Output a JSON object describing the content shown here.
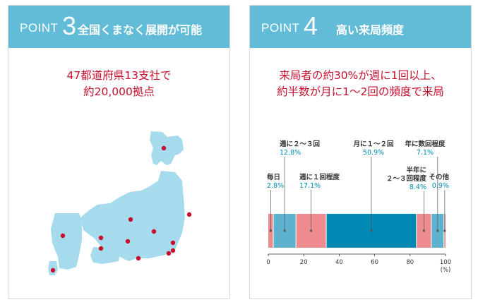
{
  "cards": [
    {
      "point_word": "POINT",
      "point_number": "3",
      "title": "全国くまなく展開が可能",
      "lead_lines": [
        "47都道府県13支社で",
        "約20,000拠点"
      ]
    },
    {
      "point_word": "POINT",
      "point_number": "4",
      "title": "高い来局頻度",
      "lead_lines": [
        "来局者の約30%が週に1回以上、",
        "約半数が月に1〜2回の頻度で来局"
      ]
    }
  ],
  "colors": {
    "header": "#62bcd8",
    "lead_text": "#c8102e",
    "map_land": "#a5dbed",
    "map_dot": "#c8102e",
    "pink": "#ee8b8e",
    "light_blue": "#5db3cf",
    "dark_blue": "#0089b5",
    "percent_text": "#0089b5"
  },
  "chart_data": {
    "type": "bar",
    "orientation": "horizontal-stacked",
    "categories": [
      {
        "label": "毎日",
        "value": 2.8,
        "color": "#ee8b8e",
        "label_lines": [
          "毎日"
        ],
        "pct_label": "2.8%"
      },
      {
        "label": "週に２〜３回",
        "value": 12.8,
        "color": "#5db3cf",
        "label_lines": [
          "週に２〜３回"
        ],
        "pct_label": "12.8%"
      },
      {
        "label": "週に１回程度",
        "value": 17.1,
        "color": "#ee8b8e",
        "label_lines": [
          "週に１回程度"
        ],
        "pct_label": "17.1%"
      },
      {
        "label": "月に１〜２回",
        "value": 50.9,
        "color": "#0089b5",
        "label_lines": [
          "月に１〜２回"
        ],
        "pct_label": "50.9%"
      },
      {
        "label": "半年に２〜３回程度",
        "value": 8.4,
        "color": "#ee8b8e",
        "label_lines": [
          "半年に",
          "２〜３回程度"
        ],
        "pct_label": "8.4%"
      },
      {
        "label": "年に数回程度",
        "value": 7.1,
        "color": "#5db3cf",
        "label_lines": [
          "年に数回程度"
        ],
        "pct_label": "7.1%"
      },
      {
        "label": "その他",
        "value": 0.9,
        "color": "#ee8b8e",
        "label_lines": [
          "その他"
        ],
        "pct_label": "0.9%"
      }
    ],
    "xlim": [
      0,
      100
    ],
    "xticks": [
      "0",
      "20",
      "40",
      "60",
      "80",
      "100"
    ],
    "unit": "(%)",
    "grid": false,
    "legend": "none"
  }
}
